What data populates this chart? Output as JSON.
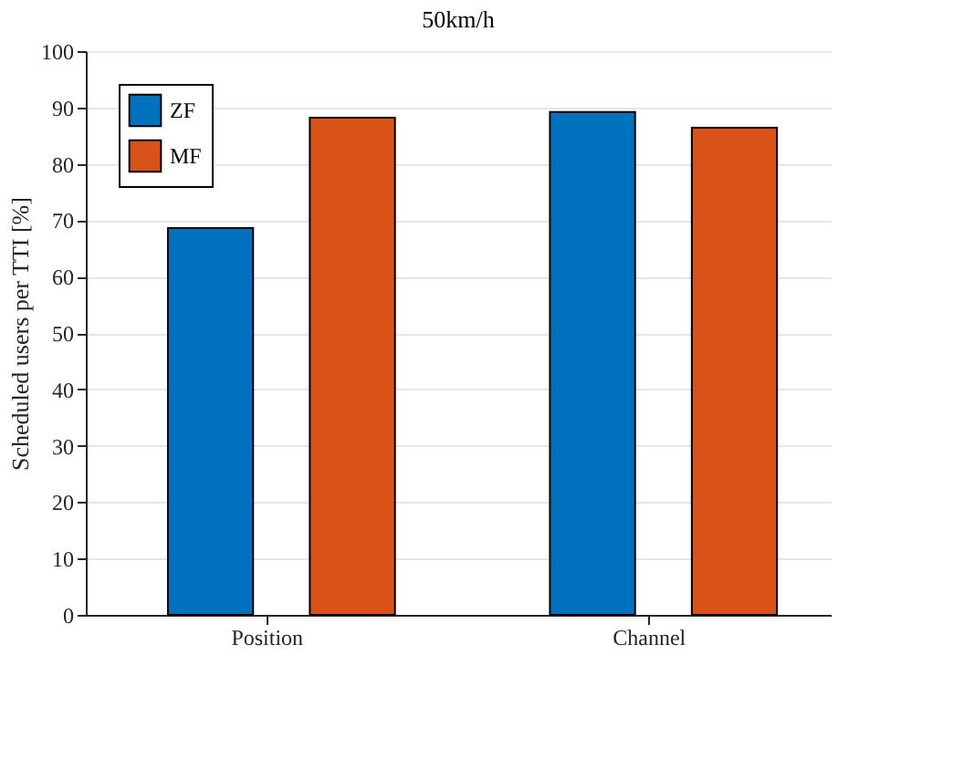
{
  "chart_data": {
    "type": "bar",
    "title": "50km/h",
    "ylabel": "Scheduled users per TTI [%]",
    "categories": [
      "Position",
      "Channel"
    ],
    "series": [
      {
        "name": "ZF",
        "color": "#0072bd",
        "values": [
          68.6,
          89.2
        ]
      },
      {
        "name": "MF",
        "color": "#d95319",
        "values": [
          88.2,
          86.4
        ]
      }
    ],
    "ylim": [
      0,
      100
    ],
    "yticks": [
      0,
      10,
      20,
      30,
      40,
      50,
      60,
      70,
      80,
      90,
      100
    ],
    "grid": "y",
    "legend": "top left"
  }
}
